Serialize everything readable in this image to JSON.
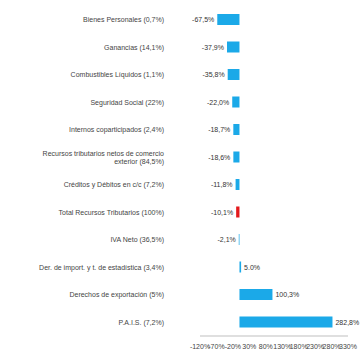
{
  "chart_data": {
    "type": "bar",
    "orientation": "horizontal",
    "categories": [
      "Bienes Personales (0,7%)",
      "Ganancias (14,1%)",
      "Combustibles Líquidos (1,1%)",
      "Seguridad Social (22%)",
      "Internos coparticipados (2,4%)",
      "Recursos tributarios netos de comercio exterior (84,5%)",
      "Créditos y Débitos en c/c (7,2%)",
      "Total Recursos Tributarios (100%)",
      "IVA Neto (36,5%)",
      "Der. de import. y t. de estadística (3,4%)",
      "Derechos de exportación (5%)",
      "P.A.I.S. (7,2%)"
    ],
    "values": [
      -67.5,
      -37.9,
      -35.8,
      -22.0,
      -18.7,
      -18.6,
      -11.8,
      -10.1,
      -2.1,
      5.0,
      100.3,
      282.8
    ],
    "value_labels": [
      "-67,5%",
      "-37,9%",
      "-35,8%",
      "-22,0%",
      "-18,7%",
      "-18,6%",
      "-11,8%",
      "-10,1%",
      "-2,1%",
      "5.0%",
      "100,3%",
      "282,8%"
    ],
    "colors": [
      "#1ba9e8",
      "#1ba9e8",
      "#1ba9e8",
      "#1ba9e8",
      "#1ba9e8",
      "#1ba9e8",
      "#1ba9e8",
      "#e3191c",
      "#1ba9e8",
      "#1ba9e8",
      "#1ba9e8",
      "#1ba9e8"
    ],
    "xlim": [
      -120,
      330
    ],
    "xticks": [
      {
        "value": -120,
        "label": "-120%"
      },
      {
        "value": -70,
        "label": "-70%"
      },
      {
        "value": -20,
        "label": "-20%"
      },
      {
        "value": 30,
        "label": "30%"
      },
      {
        "value": 80,
        "label": "80%"
      },
      {
        "value": 130,
        "label": "130%"
      },
      {
        "value": 180,
        "label": "180%"
      },
      {
        "value": 230,
        "label": "230%"
      },
      {
        "value": 280,
        "label": "280%"
      },
      {
        "value": 330,
        "label": "330%"
      }
    ],
    "grid": false,
    "data_labels": true
  }
}
